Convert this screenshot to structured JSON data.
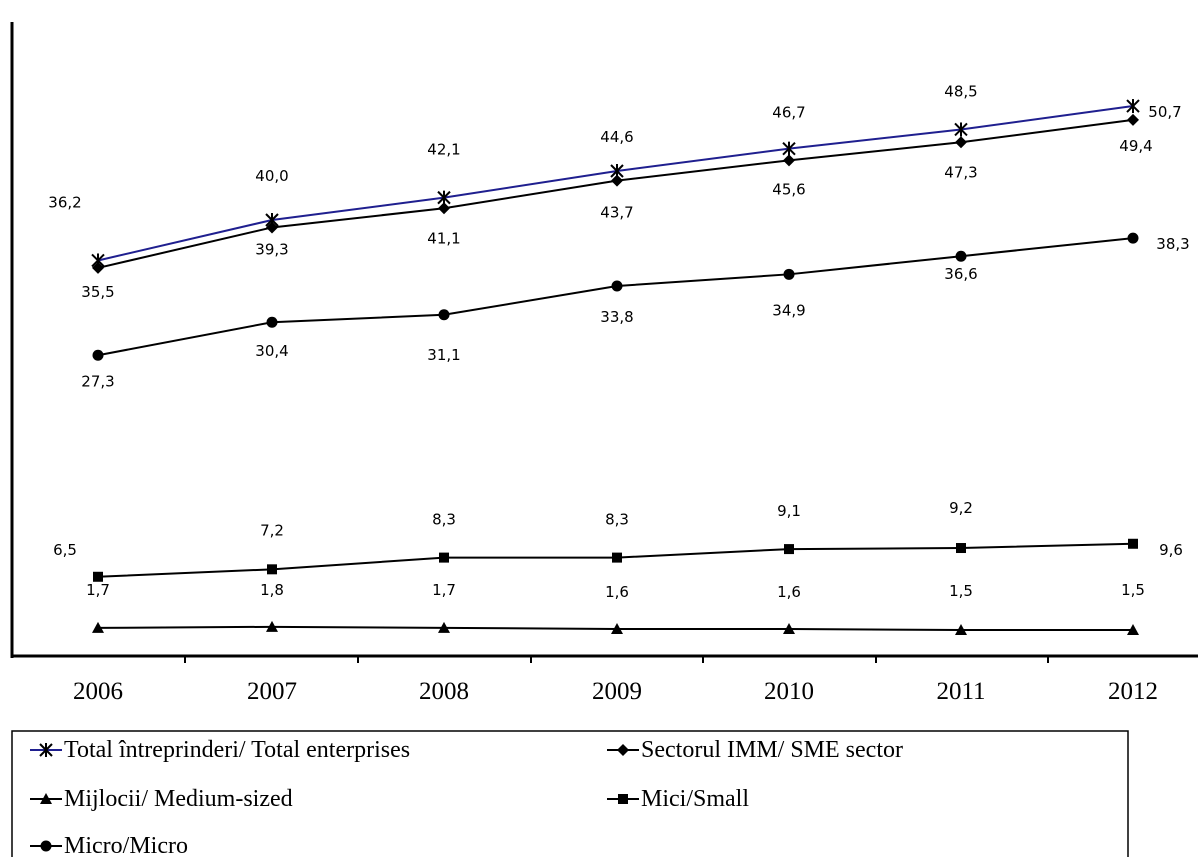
{
  "chart_data": {
    "type": "line",
    "categories": [
      "2006",
      "2007",
      "2008",
      "2009",
      "2010",
      "2011",
      "2012"
    ],
    "ylim": [
      0,
      55
    ],
    "grid": false,
    "legend_position": "bottom",
    "series": [
      {
        "name": "Total întreprinderi/ Total enterprises",
        "marker": "star",
        "color": "#1f1f8f",
        "values": [
          36.2,
          40.0,
          42.1,
          44.6,
          46.7,
          48.5,
          50.7
        ],
        "labels": [
          "36,2",
          "40,0",
          "42,1",
          "44,6",
          "46,7",
          "48,5",
          "50,7"
        ]
      },
      {
        "name": "Sectorul IMM/ SME sector",
        "marker": "diamond",
        "color": "#000000",
        "values": [
          35.5,
          39.3,
          41.1,
          43.7,
          45.6,
          47.3,
          49.4
        ],
        "labels": [
          "35,5",
          "39,3",
          "41,1",
          "43,7",
          "45,6",
          "47,3",
          "49,4"
        ]
      },
      {
        "name": "Mijlocii/ Medium-sized",
        "marker": "triangle",
        "color": "#000000",
        "values": [
          1.7,
          1.8,
          1.7,
          1.6,
          1.6,
          1.5,
          1.5
        ],
        "labels": [
          "1,7",
          "1,8",
          "1,7",
          "1,6",
          "1,6",
          "1,5",
          "1,5"
        ]
      },
      {
        "name": "Mici/Small",
        "marker": "square",
        "color": "#000000",
        "values": [
          6.5,
          7.2,
          8.3,
          8.3,
          9.1,
          9.2,
          9.6
        ],
        "labels": [
          "6,5",
          "7,2",
          "8,3",
          "8,3",
          "9,1",
          "9,2",
          "9,6"
        ]
      },
      {
        "name": "Micro/Micro",
        "marker": "circle",
        "color": "#000000",
        "values": [
          27.3,
          30.4,
          31.1,
          33.8,
          34.9,
          36.6,
          38.3
        ],
        "labels": [
          "27,3",
          "30,4",
          "31,1",
          "33,8",
          "34,9",
          "36,6",
          "38,3"
        ]
      }
    ]
  }
}
